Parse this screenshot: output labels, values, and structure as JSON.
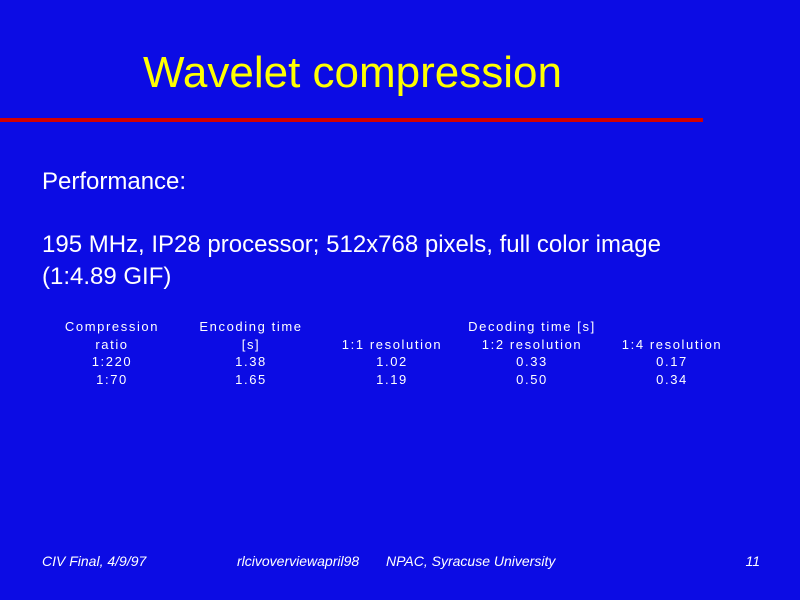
{
  "slide": {
    "title": "Wavelet compression",
    "body": [
      "Performance:",
      "195 MHz, IP28 processor; 512x768 pixels, full color image",
      "(1:4.89 GIF)"
    ],
    "table": {
      "header_row1": [
        "Compression",
        "Encoding time",
        "Decoding time [s]"
      ],
      "header_row2": [
        "ratio",
        "[s]",
        "1:1 resolution",
        "1:2 resolution",
        "1:4 resolution"
      ],
      "rows": [
        [
          "1:220",
          "1.38",
          "1.02",
          "0.33",
          "0.17"
        ],
        [
          "1:70",
          "1.65",
          "1.19",
          "0.50",
          "0.34"
        ]
      ]
    },
    "footer": {
      "left": "CIV Final, 4/9/97",
      "center_file": "rlcivoverviewapril98",
      "center_org": "NPAC, Syracuse University",
      "page": "11"
    }
  }
}
